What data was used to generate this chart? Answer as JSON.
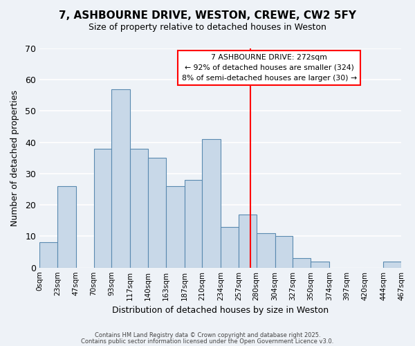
{
  "title": "7, ASHBOURNE DRIVE, WESTON, CREWE, CW2 5FY",
  "subtitle": "Size of property relative to detached houses in Weston",
  "xlabel": "Distribution of detached houses by size in Weston",
  "ylabel": "Number of detached properties",
  "bar_color": "#c8d8e8",
  "bar_edge_color": "#5a8ab0",
  "background_color": "#eef2f7",
  "grid_color": "white",
  "bins": [
    0,
    23,
    47,
    70,
    93,
    117,
    140,
    163,
    187,
    210,
    234,
    257,
    280,
    304,
    327,
    350,
    374,
    397,
    420,
    444,
    467
  ],
  "bin_labels": [
    "0sqm",
    "23sqm",
    "47sqm",
    "70sqm",
    "93sqm",
    "117sqm",
    "140sqm",
    "163sqm",
    "187sqm",
    "210sqm",
    "234sqm",
    "257sqm",
    "280sqm",
    "304sqm",
    "327sqm",
    "350sqm",
    "374sqm",
    "397sqm",
    "420sqm",
    "444sqm",
    "467sqm"
  ],
  "counts": [
    8,
    26,
    0,
    38,
    57,
    38,
    35,
    26,
    28,
    41,
    13,
    17,
    11,
    10,
    3,
    2,
    0,
    0,
    0,
    2
  ],
  "ylim": [
    0,
    70
  ],
  "yticks": [
    0,
    10,
    20,
    30,
    40,
    50,
    60,
    70
  ],
  "vline_x": 272,
  "vline_color": "red",
  "annotation_title": "7 ASHBOURNE DRIVE: 272sqm",
  "annotation_line1": "← 92% of detached houses are smaller (324)",
  "annotation_line2": "8% of semi-detached houses are larger (30) →",
  "footer1": "Contains HM Land Registry data © Crown copyright and database right 2025.",
  "footer2": "Contains public sector information licensed under the Open Government Licence v3.0."
}
